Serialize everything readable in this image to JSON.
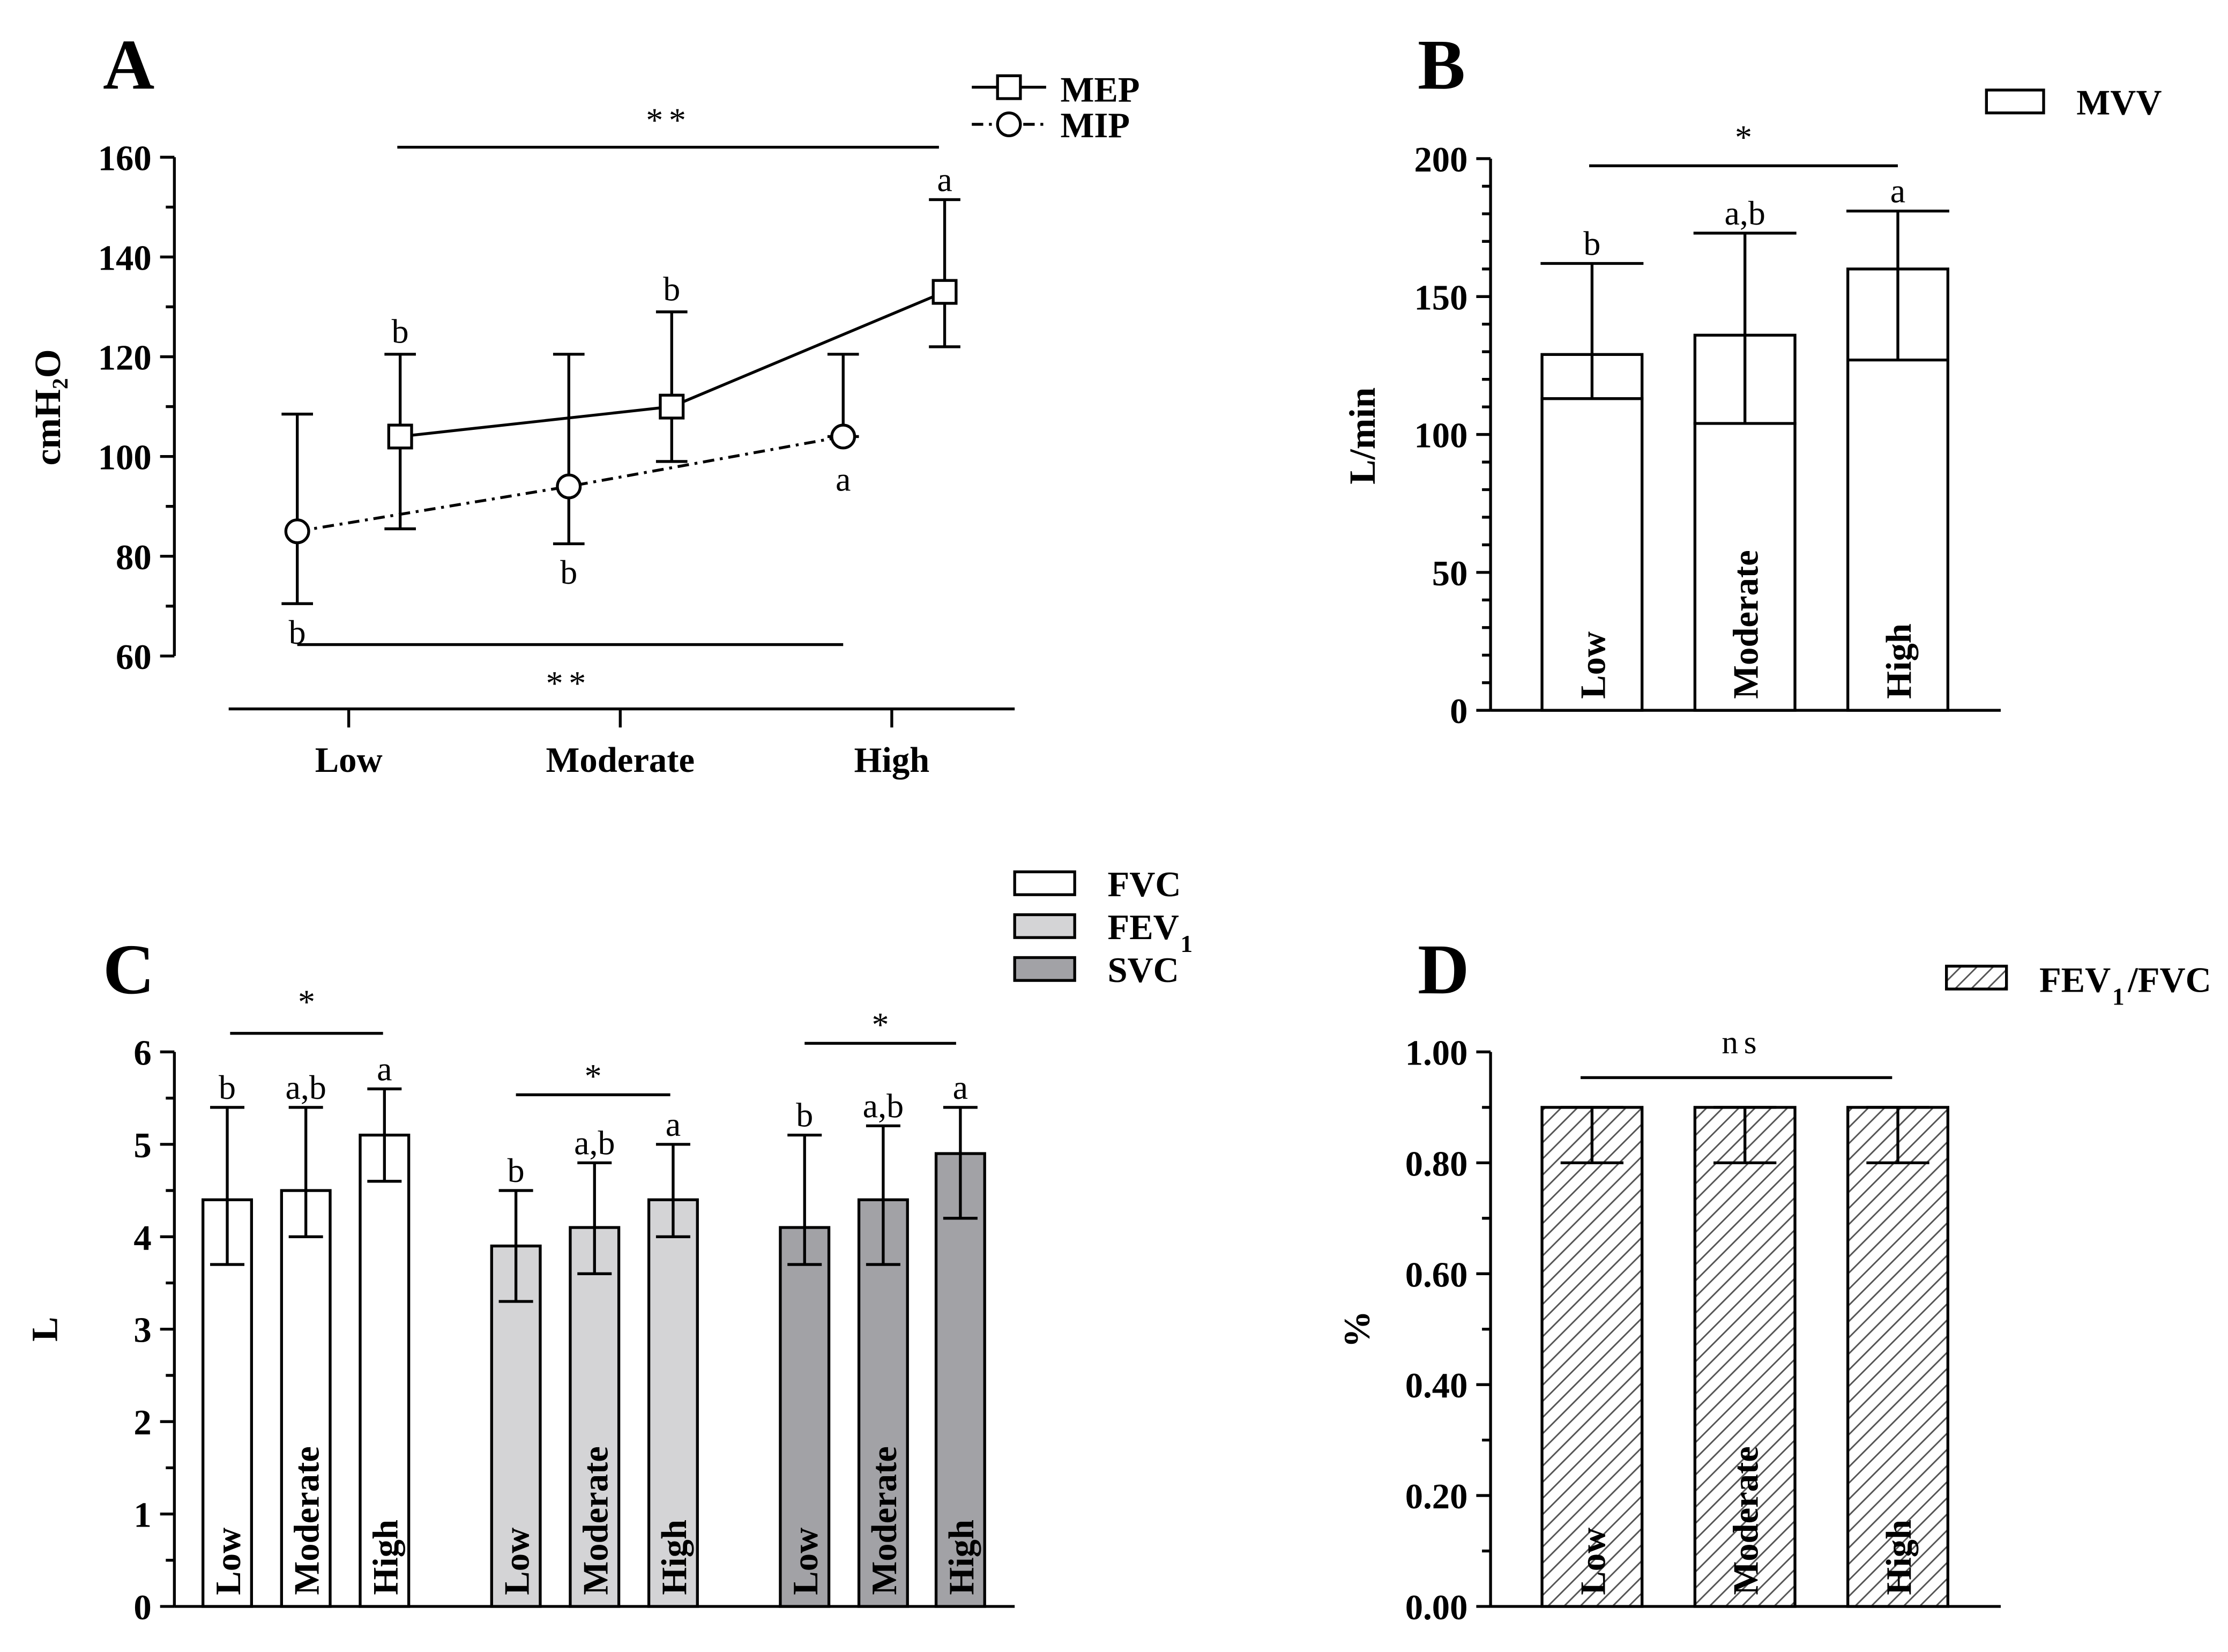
{
  "chart_data": [
    {
      "panel": "A",
      "type": "line",
      "ylabel": "cmH₂O",
      "ylim": [
        60,
        160
      ],
      "yticks": [
        "60",
        "80",
        "100",
        "120",
        "140",
        "160"
      ],
      "categories": [
        "Low",
        "Moderate",
        "High"
      ],
      "series": [
        {
          "name": "MEP",
          "marker": "square",
          "line": "solid",
          "values": [
            104,
            110,
            133
          ],
          "err_low": [
            85.5,
            99,
            122
          ],
          "err_high": [
            120.5,
            129,
            151.5
          ],
          "letters": [
            "b",
            "b",
            "a"
          ]
        },
        {
          "name": "MIP",
          "marker": "circle",
          "line": "dash-dot",
          "values": [
            85,
            94,
            104
          ],
          "err_low": [
            70.5,
            82.5,
            null
          ],
          "err_high": [
            108.5,
            120.5,
            120.5
          ],
          "letters": [
            "b",
            "b",
            "a"
          ]
        }
      ],
      "significance": [
        {
          "label": "**",
          "series": "MEP"
        },
        {
          "label": "**",
          "series": "MIP"
        }
      ]
    },
    {
      "panel": "B",
      "type": "bar",
      "ylabel": "L/min",
      "ylim": [
        0,
        200
      ],
      "yticks": [
        "0",
        "50",
        "100",
        "150",
        "200"
      ],
      "categories": [
        "Low",
        "Moderate",
        "High"
      ],
      "series": [
        {
          "name": "MVV",
          "fill": "#ffffff",
          "values": [
            129,
            136,
            160
          ],
          "err_low": [
            113,
            104,
            127
          ],
          "err_high": [
            162,
            173,
            181
          ],
          "letters": [
            "b",
            "a,b",
            "a"
          ]
        }
      ],
      "significance": [
        {
          "label": "*"
        }
      ]
    },
    {
      "panel": "C",
      "type": "bar",
      "ylabel": "L",
      "ylim": [
        0,
        6
      ],
      "yticks": [
        "0",
        "1",
        "2",
        "3",
        "4",
        "5",
        "6"
      ],
      "categories": [
        "Low",
        "Moderate",
        "High"
      ],
      "series": [
        {
          "name": "FVC",
          "fill": "#ffffff",
          "values": [
            4.4,
            4.5,
            5.1
          ],
          "err_low": [
            3.7,
            4.0,
            4.6
          ],
          "err_high": [
            5.4,
            5.4,
            5.6
          ],
          "letters": [
            "b",
            "a,b",
            "a"
          ]
        },
        {
          "name": "FEV",
          "subscript": "1",
          "fill": "#d4d4d6",
          "values": [
            3.9,
            4.1,
            4.4
          ],
          "err_low": [
            3.3,
            3.6,
            4.0
          ],
          "err_high": [
            4.5,
            4.8,
            5.0
          ],
          "letters": [
            "b",
            "a,b",
            "a"
          ]
        },
        {
          "name": "SVC",
          "fill": "#a2a2a6",
          "values": [
            4.1,
            4.4,
            4.9
          ],
          "err_low": [
            3.7,
            3.7,
            4.2
          ],
          "err_high": [
            5.1,
            5.2,
            5.4
          ],
          "letters": [
            "b",
            "a,b",
            "a"
          ]
        }
      ],
      "significance": [
        {
          "label": "*"
        },
        {
          "label": "*"
        },
        {
          "label": "*"
        }
      ]
    },
    {
      "panel": "D",
      "type": "bar",
      "ylabel": "%",
      "ylim": [
        0,
        1
      ],
      "yticks": [
        "0.00",
        "0.20",
        "0.40",
        "0.60",
        "0.80",
        "1.00"
      ],
      "categories": [
        "Low",
        "Moderate",
        "High"
      ],
      "series": [
        {
          "name": "FEV",
          "subscript": "1",
          "name_suffix": "/FVC",
          "fill": "hatched",
          "values": [
            0.9,
            0.9,
            0.9
          ],
          "err_low": [
            0.8,
            0.8,
            0.8
          ],
          "err_high": [
            0.9,
            0.9,
            0.9
          ]
        }
      ],
      "significance": [
        {
          "label": "ns"
        }
      ]
    }
  ]
}
